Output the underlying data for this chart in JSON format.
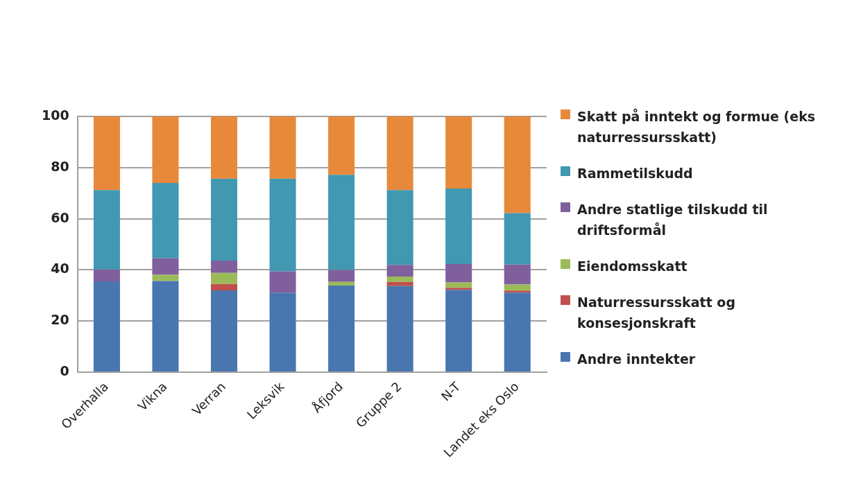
{
  "chart_data": {
    "type": "bar",
    "stacked": true,
    "categories": [
      "Overhalla",
      "Vikna",
      "Verran",
      "Leksvik",
      "Åfjord",
      "Gruppe 2",
      "N-T",
      "Landet eks Oslo"
    ],
    "series": [
      {
        "name": "Andre inntekter",
        "color": "#4a76b0",
        "values": [
          35.5,
          35.6,
          32.0,
          31.1,
          33.9,
          33.7,
          32.2,
          31.1
        ]
      },
      {
        "name": "Naturressursskatt og konsesjonskraft",
        "color": "#c0504d",
        "values": [
          0,
          0,
          2.5,
          0,
          0,
          1.6,
          0.8,
          0.8
        ]
      },
      {
        "name": "Eiendomsskatt",
        "color": "#9bbb59",
        "values": [
          0,
          2.5,
          4.3,
          0,
          1.4,
          2.1,
          2.1,
          2.4
        ]
      },
      {
        "name": "Andre statlige tilskudd til driftsformål",
        "color": "#7f5f9c",
        "values": [
          4.7,
          6.4,
          4.8,
          8.3,
          4.7,
          4.5,
          7.2,
          7.8
        ]
      },
      {
        "name": "Rammetilskudd",
        "color": "#4198b0",
        "values": [
          31.0,
          29.5,
          32.1,
          36.3,
          37.2,
          29.3,
          29.5,
          20.1
        ]
      },
      {
        "name": "Skatt på inntekt og formue (eks naturressursskatt)",
        "color": "#e8883a",
        "values": [
          28.8,
          26.0,
          24.3,
          24.3,
          22.8,
          28.8,
          28.2,
          37.8
        ]
      }
    ],
    "ylim": [
      0,
      100
    ],
    "yticks": [
      0,
      20,
      40,
      60,
      80,
      100
    ],
    "grid": "y",
    "legend": "right"
  }
}
